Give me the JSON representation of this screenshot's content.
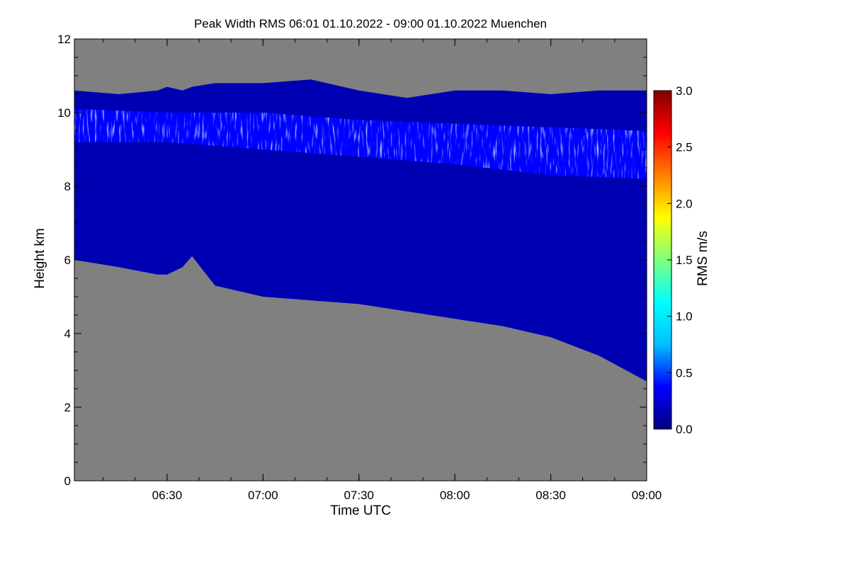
{
  "chart_data": {
    "type": "heatmap",
    "title": "Peak Width RMS   06:01 01.10.2022 - 09:00 01.10.2022 Muenchen",
    "xlabel": "Time UTC",
    "ylabel": "Height km",
    "colorbar_label": "RMS m/s",
    "x_range_hours": [
      6.0167,
      9.0
    ],
    "y_range_km": [
      0,
      12
    ],
    "x_ticks": [
      {
        "value": 6.5,
        "label": "06:30"
      },
      {
        "value": 7.0,
        "label": "07:00"
      },
      {
        "value": 7.5,
        "label": "07:30"
      },
      {
        "value": 8.0,
        "label": "08:00"
      },
      {
        "value": 8.5,
        "label": "08:30"
      },
      {
        "value": 9.0,
        "label": "09:00"
      }
    ],
    "y_ticks": [
      {
        "value": 0,
        "label": "0"
      },
      {
        "value": 2,
        "label": "2"
      },
      {
        "value": 4,
        "label": "4"
      },
      {
        "value": 6,
        "label": "6"
      },
      {
        "value": 8,
        "label": "8"
      },
      {
        "value": 10,
        "label": "10"
      },
      {
        "value": 12,
        "label": "12"
      }
    ],
    "colorbar_range": [
      0,
      3.0
    ],
    "colorbar_ticks": [
      {
        "value": 0.0,
        "label": "0.0"
      },
      {
        "value": 0.5,
        "label": "0.5"
      },
      {
        "value": 1.0,
        "label": "1.0"
      },
      {
        "value": 1.5,
        "label": "1.5"
      },
      {
        "value": 2.0,
        "label": "2.0"
      },
      {
        "value": 2.5,
        "label": "2.5"
      },
      {
        "value": 3.0,
        "label": "3.0"
      }
    ],
    "colorbar_colors": [
      "#000080",
      "#0000ff",
      "#00bfff",
      "#00ffff",
      "#7fff7f",
      "#ffff00",
      "#ff8000",
      "#ff0000",
      "#800000"
    ],
    "no_data_color": "#808080",
    "cloud_layer": {
      "time": [
        6.0167,
        6.25,
        6.45,
        6.5,
        6.58,
        6.63,
        6.75,
        7.0,
        7.25,
        7.5,
        7.75,
        8.0,
        8.25,
        8.5,
        8.75,
        9.0
      ],
      "base_km": [
        6.0,
        5.8,
        5.6,
        5.6,
        5.8,
        6.1,
        5.3,
        5.0,
        4.9,
        4.8,
        4.6,
        4.4,
        4.2,
        3.9,
        3.4,
        2.7
      ],
      "top_km": [
        10.6,
        10.5,
        10.6,
        10.7,
        10.6,
        10.7,
        10.8,
        10.8,
        10.9,
        10.6,
        10.4,
        10.6,
        10.6,
        10.5,
        10.6,
        10.6
      ]
    },
    "high_rms_band": {
      "time": [
        6.0167,
        6.5,
        7.0,
        7.5,
        8.0,
        8.5,
        9.0
      ],
      "lower_km": [
        9.2,
        9.2,
        9.0,
        8.8,
        8.6,
        8.3,
        8.2
      ],
      "upper_km": [
        10.1,
        10.0,
        10.0,
        9.8,
        9.7,
        9.6,
        9.5
      ],
      "typical_rms": 0.6,
      "peak_rms": 1.1
    },
    "typical_layer_rms": 0.15
  }
}
